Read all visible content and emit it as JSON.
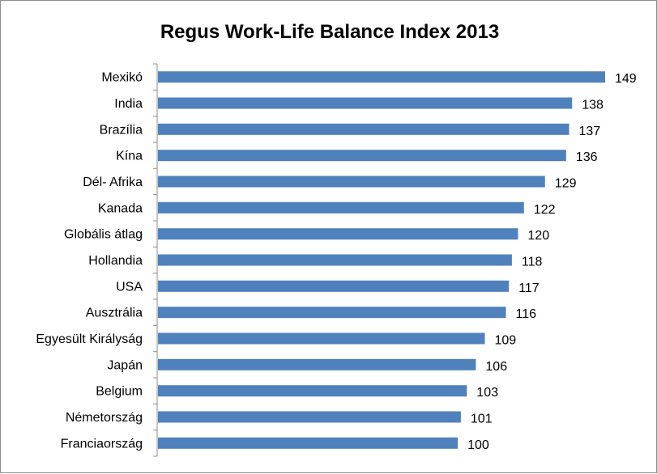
{
  "chart_data": {
    "type": "bar",
    "orientation": "horizontal",
    "title": "Regus Work-Life Balance Index 2013",
    "xlabel": "",
    "ylabel": "",
    "xlim": [
      0,
      149
    ],
    "grid": false,
    "legend": "none",
    "bar_color": "#4F81BD",
    "data_labels": true,
    "categories": [
      "Mexikó",
      "India",
      "Brazília",
      "Kína",
      "Dél- Afrika",
      "Kanada",
      "Globális átlag",
      "Hollandia",
      "USA",
      "Ausztrália",
      "Egyesült Királyság",
      "Japán",
      "Belgium",
      "Németország",
      "Franciaország"
    ],
    "values": [
      149,
      138,
      137,
      136,
      129,
      122,
      120,
      118,
      117,
      116,
      109,
      106,
      103,
      101,
      100
    ]
  }
}
